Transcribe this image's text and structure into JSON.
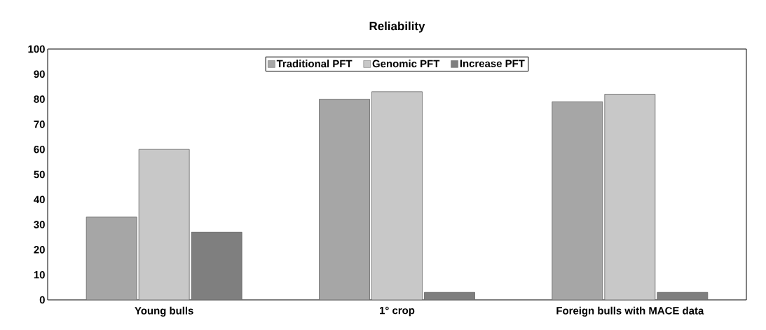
{
  "chart_data": {
    "type": "bar",
    "title": "Reliability",
    "categories": [
      "Young bulls",
      "1° crop",
      "Foreign bulls with MACE data"
    ],
    "series": [
      {
        "name": "Traditional PFT",
        "color": "#a6a6a6",
        "values": [
          33,
          80,
          79
        ]
      },
      {
        "name": "Genomic PFT",
        "color": "#c8c8c8",
        "values": [
          60,
          83,
          82
        ]
      },
      {
        "name": "Increase PFT",
        "color": "#7f7f7f",
        "values": [
          27,
          3,
          3
        ]
      }
    ],
    "ylim": [
      0,
      100
    ],
    "yticks": [
      0,
      10,
      20,
      30,
      40,
      50,
      60,
      70,
      80,
      90,
      100
    ],
    "grid": false,
    "legend": "top"
  }
}
